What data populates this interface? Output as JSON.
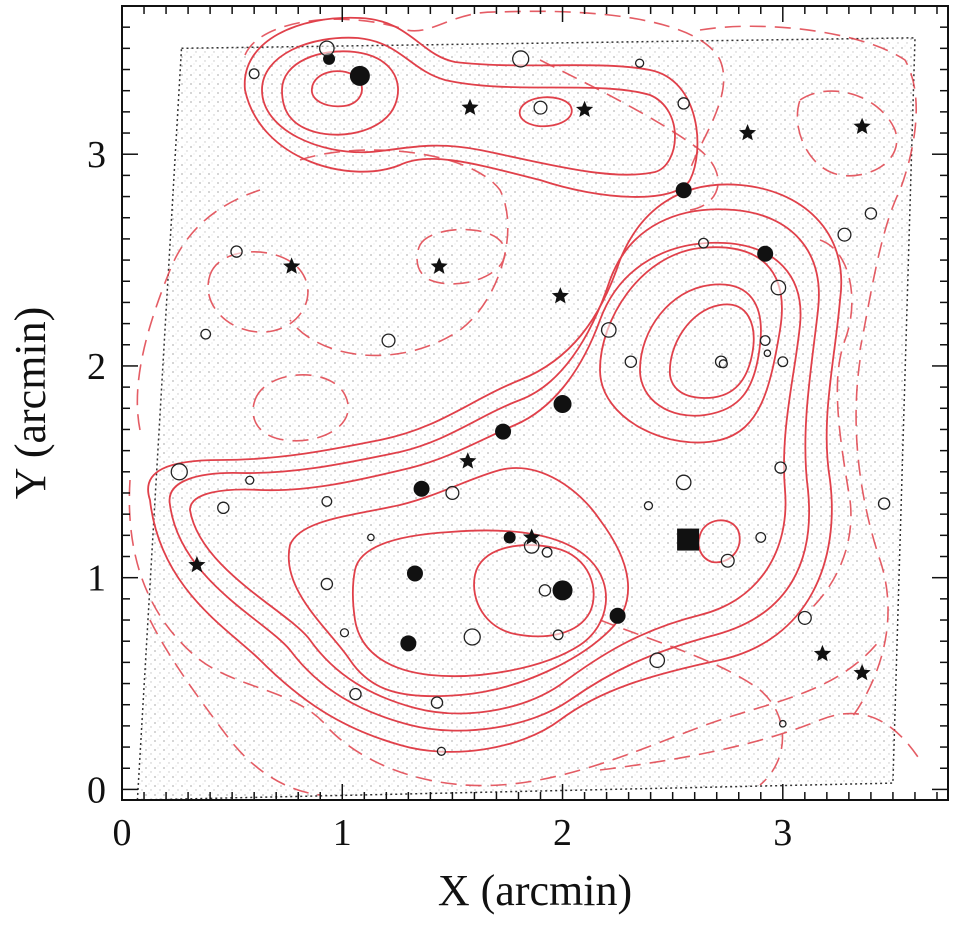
{
  "chart_data": {
    "type": "scatter",
    "title": "",
    "xlabel": "X (arcmin)",
    "ylabel": "Y (arcmin)",
    "xlim": [
      0,
      3.75
    ],
    "ylim": [
      -0.05,
      3.7
    ],
    "x_ticks": [
      {
        "value": 0,
        "label": "0"
      },
      {
        "value": 1,
        "label": "1"
      },
      {
        "value": 2,
        "label": "2"
      },
      {
        "value": 3,
        "label": "3"
      }
    ],
    "y_ticks": [
      {
        "value": 0,
        "label": "0"
      },
      {
        "value": 1,
        "label": "1"
      },
      {
        "value": 2,
        "label": "2"
      },
      {
        "value": 3,
        "label": "3"
      }
    ],
    "field_boundary": [
      [
        0.27,
        3.5
      ],
      [
        3.6,
        3.55
      ],
      [
        3.5,
        0.03
      ],
      [
        0.07,
        -0.05
      ]
    ],
    "colors": {
      "contours": "#e0404a",
      "points": "#111111",
      "stipple": "#b8b8b8"
    },
    "series": [
      {
        "marker": "filled-circle",
        "points": [
          [
            0.94,
            3.45
          ],
          [
            1.08,
            3.37
          ],
          [
            2.55,
            2.83
          ],
          [
            2.92,
            2.53
          ],
          [
            2.0,
            1.82
          ],
          [
            1.73,
            1.69
          ],
          [
            1.36,
            1.42
          ],
          [
            1.76,
            1.19
          ],
          [
            1.33,
            1.02
          ],
          [
            2.0,
            0.94
          ],
          [
            2.25,
            0.82
          ],
          [
            1.3,
            0.69
          ]
        ]
      },
      {
        "marker": "open-circle",
        "points": [
          [
            0.93,
            3.5
          ],
          [
            0.6,
            3.38
          ],
          [
            1.9,
            3.22
          ],
          [
            2.55,
            3.24
          ],
          [
            2.35,
            3.43
          ],
          [
            1.81,
            3.45
          ],
          [
            0.52,
            2.54
          ],
          [
            0.38,
            2.15
          ],
          [
            1.21,
            2.12
          ],
          [
            2.21,
            2.17
          ],
          [
            2.31,
            2.02
          ],
          [
            2.72,
            2.02
          ],
          [
            2.73,
            2.01
          ],
          [
            2.93,
            2.06
          ],
          [
            3.0,
            2.02
          ],
          [
            2.98,
            2.37
          ],
          [
            2.64,
            2.58
          ],
          [
            3.28,
            2.62
          ],
          [
            3.4,
            2.72
          ],
          [
            0.58,
            1.46
          ],
          [
            0.26,
            1.5
          ],
          [
            0.46,
            1.33
          ],
          [
            0.93,
            1.36
          ],
          [
            1.5,
            1.4
          ],
          [
            2.55,
            1.45
          ],
          [
            2.99,
            1.52
          ],
          [
            3.46,
            1.35
          ],
          [
            2.39,
            1.34
          ],
          [
            1.13,
            1.19
          ],
          [
            2.9,
            1.19
          ],
          [
            1.86,
            1.15
          ],
          [
            1.93,
            1.12
          ],
          [
            2.75,
            1.08
          ],
          [
            0.93,
            0.97
          ],
          [
            1.01,
            0.74
          ],
          [
            1.59,
            0.72
          ],
          [
            1.92,
            0.94
          ],
          [
            1.98,
            0.73
          ],
          [
            3.1,
            0.81
          ],
          [
            2.43,
            0.61
          ],
          [
            1.06,
            0.45
          ],
          [
            1.43,
            0.41
          ],
          [
            1.45,
            0.18
          ],
          [
            3.0,
            0.31
          ],
          [
            2.92,
            2.12
          ]
        ]
      },
      {
        "marker": "star",
        "points": [
          [
            1.58,
            3.22
          ],
          [
            2.1,
            3.21
          ],
          [
            2.84,
            3.1
          ],
          [
            3.36,
            3.13
          ],
          [
            0.77,
            2.47
          ],
          [
            1.44,
            2.47
          ],
          [
            1.99,
            2.33
          ],
          [
            1.57,
            1.55
          ],
          [
            1.86,
            1.19
          ],
          [
            0.34,
            1.06
          ],
          [
            3.18,
            0.64
          ],
          [
            3.36,
            0.55
          ]
        ]
      },
      {
        "marker": "filled-square",
        "points": [
          [
            2.57,
            1.18
          ]
        ]
      }
    ]
  }
}
